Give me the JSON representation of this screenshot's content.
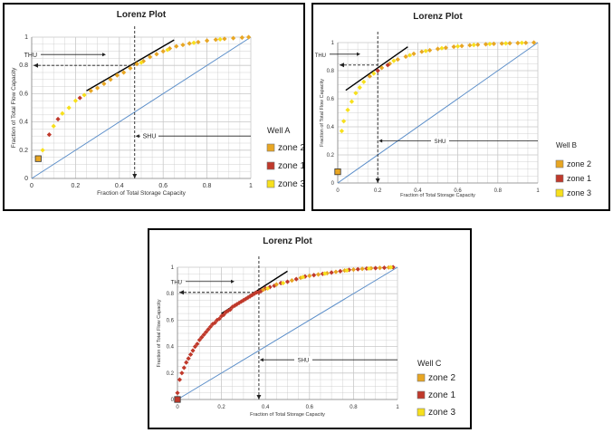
{
  "colors": {
    "zone 2": "#e8a623",
    "zone 1": "#c0392b",
    "zone 3": "#f7e01d",
    "diagonal": "#5b8ec9",
    "grid": "#c8c8c8"
  },
  "chart_data": [
    {
      "type": "scatter",
      "title": "Lorenz Plot",
      "xlabel": "Fraction of Total Storage Capacity",
      "ylabel": "Fraction of Total Flow Capacity",
      "xlim": [
        0,
        1
      ],
      "ylim": [
        0,
        1
      ],
      "xticks": [
        "0",
        "0.2",
        "0.4",
        "0.6",
        "0.8",
        "1"
      ],
      "yticks": [
        "0",
        "0.2",
        "0.4",
        "0.6",
        "0.8",
        "1"
      ],
      "grid": true,
      "legend_title": "Well A",
      "legend": [
        "zone 2",
        "zone 1",
        "zone 3"
      ],
      "annotations": {
        "thu": "THU",
        "shu": "SHU",
        "thu_level": 0.8,
        "shu_level": 0.47,
        "tangent": [
          [
            0.25,
            0.62
          ],
          [
            0.65,
            0.98
          ]
        ]
      },
      "series": [
        {
          "name": "zone 2",
          "marker": "diamond",
          "points": [
            [
              0.27,
              0.62
            ],
            [
              0.3,
              0.64
            ],
            [
              0.33,
              0.67
            ],
            [
              0.36,
              0.7
            ],
            [
              0.39,
              0.73
            ],
            [
              0.42,
              0.75
            ],
            [
              0.45,
              0.78
            ],
            [
              0.48,
              0.81
            ],
            [
              0.51,
              0.83
            ],
            [
              0.54,
              0.86
            ],
            [
              0.57,
              0.88
            ],
            [
              0.6,
              0.9
            ],
            [
              0.63,
              0.92
            ],
            [
              0.66,
              0.935
            ],
            [
              0.69,
              0.945
            ],
            [
              0.72,
              0.955
            ],
            [
              0.76,
              0.965
            ],
            [
              0.8,
              0.975
            ],
            [
              0.84,
              0.982
            ],
            [
              0.88,
              0.988
            ],
            [
              0.92,
              0.993
            ],
            [
              0.96,
              0.997
            ],
            [
              0.99,
              1.0
            ]
          ]
        },
        {
          "name": "zone 1",
          "marker": "diamond",
          "points": [
            [
              0.08,
              0.31
            ],
            [
              0.12,
              0.42
            ],
            [
              0.22,
              0.57
            ]
          ]
        },
        {
          "name": "zone 3",
          "marker": "diamond",
          "points": [
            [
              0.05,
              0.2
            ],
            [
              0.1,
              0.37
            ],
            [
              0.14,
              0.46
            ],
            [
              0.17,
              0.5
            ],
            [
              0.2,
              0.55
            ],
            [
              0.24,
              0.59
            ],
            [
              0.5,
              0.82
            ],
            [
              0.62,
              0.91
            ],
            [
              0.74,
              0.96
            ],
            [
              0.86,
              0.985
            ]
          ]
        },
        {
          "name": "zone 2",
          "marker": "square",
          "points": [
            [
              0.03,
              0.14
            ]
          ]
        }
      ]
    },
    {
      "type": "scatter",
      "title": "Lorenz Plot",
      "xlabel": "Fraction of Total Storage Capacity",
      "ylabel": "Fraction of Total Flow Capacity",
      "xlim": [
        0,
        1
      ],
      "ylim": [
        0,
        1
      ],
      "xticks": [
        "0",
        "0.2",
        "0.4",
        "0.6",
        "0.8",
        "1"
      ],
      "yticks": [
        "0",
        "0.2",
        "0.4",
        "0.6",
        "0.8",
        "1"
      ],
      "grid": true,
      "legend_title": "Well B",
      "legend": [
        "zone 2",
        "zone 1",
        "zone 3"
      ],
      "annotations": {
        "thu": "THU",
        "shu": "SHU",
        "thu_level": 0.84,
        "shu_level": 0.2,
        "tangent": [
          [
            0.04,
            0.66
          ],
          [
            0.35,
            0.97
          ]
        ]
      },
      "series": [
        {
          "name": "zone 2",
          "marker": "diamond",
          "points": [
            [
              0.16,
              0.76
            ],
            [
              0.22,
              0.82
            ],
            [
              0.26,
              0.85
            ],
            [
              0.3,
              0.88
            ],
            [
              0.34,
              0.9
            ],
            [
              0.38,
              0.92
            ],
            [
              0.42,
              0.935
            ],
            [
              0.46,
              0.945
            ],
            [
              0.5,
              0.955
            ],
            [
              0.54,
              0.963
            ],
            [
              0.58,
              0.97
            ],
            [
              0.62,
              0.976
            ],
            [
              0.66,
              0.981
            ],
            [
              0.7,
              0.985
            ],
            [
              0.74,
              0.988
            ],
            [
              0.78,
              0.991
            ],
            [
              0.82,
              0.993
            ],
            [
              0.86,
              0.995
            ],
            [
              0.9,
              0.997
            ],
            [
              0.94,
              0.998
            ],
            [
              0.98,
              1.0
            ]
          ]
        },
        {
          "name": "zone 1",
          "marker": "diamond",
          "points": [
            [
              0.2,
              0.8
            ],
            [
              0.25,
              0.84
            ]
          ]
        },
        {
          "name": "zone 3",
          "marker": "diamond",
          "points": [
            [
              0.02,
              0.37
            ],
            [
              0.03,
              0.44
            ],
            [
              0.05,
              0.52
            ],
            [
              0.07,
              0.58
            ],
            [
              0.09,
              0.64
            ],
            [
              0.11,
              0.68
            ],
            [
              0.13,
              0.72
            ],
            [
              0.18,
              0.78
            ],
            [
              0.28,
              0.87
            ],
            [
              0.36,
              0.91
            ],
            [
              0.44,
              0.94
            ],
            [
              0.52,
              0.96
            ],
            [
              0.6,
              0.973
            ],
            [
              0.68,
              0.983
            ],
            [
              0.76,
              0.99
            ],
            [
              0.84,
              0.994
            ],
            [
              0.92,
              0.998
            ]
          ]
        },
        {
          "name": "zone 2",
          "marker": "square",
          "points": [
            [
              0.0,
              0.08
            ]
          ]
        }
      ]
    },
    {
      "type": "scatter",
      "title": "Lorenz Plot",
      "xlabel": "Fraction of Total Storage Capacity",
      "ylabel": "Fraction of Total Flow Capacity",
      "xlim": [
        0,
        1
      ],
      "ylim": [
        0,
        1
      ],
      "xticks": [
        "0",
        "0.2",
        "0.4",
        "0.6",
        "0.8",
        "1"
      ],
      "yticks": [
        "0",
        "0.2",
        "0.4",
        "0.6",
        "0.8",
        "1"
      ],
      "grid": true,
      "legend_title": "Well C",
      "legend": [
        "zone 2",
        "zone 1",
        "zone 3"
      ],
      "annotations": {
        "thu": "THU",
        "shu": "SHU",
        "thu_level": 0.81,
        "shu_level": 0.37,
        "tangent": [
          [
            0.2,
            0.65
          ],
          [
            0.5,
            0.97
          ]
        ]
      },
      "series": [
        {
          "name": "zone 1",
          "marker": "diamond",
          "points": [
            [
              0.0,
              0.05
            ],
            [
              0.01,
              0.15
            ],
            [
              0.02,
              0.2
            ],
            [
              0.03,
              0.24
            ],
            [
              0.04,
              0.28
            ],
            [
              0.05,
              0.31
            ],
            [
              0.06,
              0.34
            ],
            [
              0.07,
              0.37
            ],
            [
              0.08,
              0.4
            ],
            [
              0.09,
              0.42
            ],
            [
              0.1,
              0.45
            ],
            [
              0.11,
              0.47
            ],
            [
              0.12,
              0.49
            ],
            [
              0.13,
              0.51
            ],
            [
              0.14,
              0.53
            ],
            [
              0.15,
              0.55
            ],
            [
              0.16,
              0.57
            ],
            [
              0.17,
              0.58
            ],
            [
              0.18,
              0.6
            ],
            [
              0.19,
              0.61
            ],
            [
              0.2,
              0.63
            ],
            [
              0.21,
              0.64
            ],
            [
              0.22,
              0.66
            ],
            [
              0.23,
              0.67
            ],
            [
              0.24,
              0.68
            ],
            [
              0.25,
              0.7
            ],
            [
              0.26,
              0.71
            ],
            [
              0.27,
              0.72
            ],
            [
              0.28,
              0.73
            ],
            [
              0.29,
              0.74
            ],
            [
              0.3,
              0.75
            ],
            [
              0.31,
              0.76
            ],
            [
              0.32,
              0.77
            ],
            [
              0.33,
              0.78
            ],
            [
              0.34,
              0.79
            ],
            [
              0.35,
              0.8
            ],
            [
              0.36,
              0.81
            ],
            [
              0.37,
              0.81
            ],
            [
              0.38,
              0.82
            ],
            [
              0.4,
              0.84
            ],
            [
              0.42,
              0.85
            ],
            [
              0.44,
              0.86
            ],
            [
              0.47,
              0.88
            ],
            [
              0.5,
              0.89
            ],
            [
              0.54,
              0.91
            ],
            [
              0.58,
              0.93
            ],
            [
              0.62,
              0.94
            ],
            [
              0.66,
              0.95
            ],
            [
              0.7,
              0.96
            ],
            [
              0.74,
              0.97
            ],
            [
              0.78,
              0.98
            ],
            [
              0.82,
              0.985
            ],
            [
              0.86,
              0.99
            ],
            [
              0.9,
              0.993
            ],
            [
              0.94,
              0.996
            ],
            [
              0.98,
              1.0
            ]
          ]
        },
        {
          "name": "zone 2",
          "marker": "diamond",
          "points": [
            [
              0.39,
              0.83
            ],
            [
              0.45,
              0.87
            ],
            [
              0.52,
              0.9
            ],
            [
              0.56,
              0.92
            ],
            [
              0.6,
              0.935
            ],
            [
              0.64,
              0.945
            ],
            [
              0.68,
              0.955
            ],
            [
              0.72,
              0.965
            ],
            [
              0.76,
              0.975
            ],
            [
              0.8,
              0.982
            ],
            [
              0.84,
              0.988
            ],
            [
              0.88,
              0.992
            ],
            [
              0.92,
              0.995
            ],
            [
              0.96,
              0.998
            ]
          ]
        },
        {
          "name": "zone 3",
          "marker": "diamond",
          "points": [
            [
              0.41,
              0.84
            ],
            [
              0.48,
              0.88
            ],
            [
              0.57,
              0.925
            ],
            [
              0.67,
              0.952
            ],
            [
              0.77,
              0.976
            ],
            [
              0.87,
              0.99
            ],
            [
              0.97,
              0.999
            ]
          ]
        },
        {
          "name": "zone 1",
          "marker": "square",
          "points": [
            [
              0.0,
              0.0
            ]
          ]
        }
      ]
    }
  ]
}
